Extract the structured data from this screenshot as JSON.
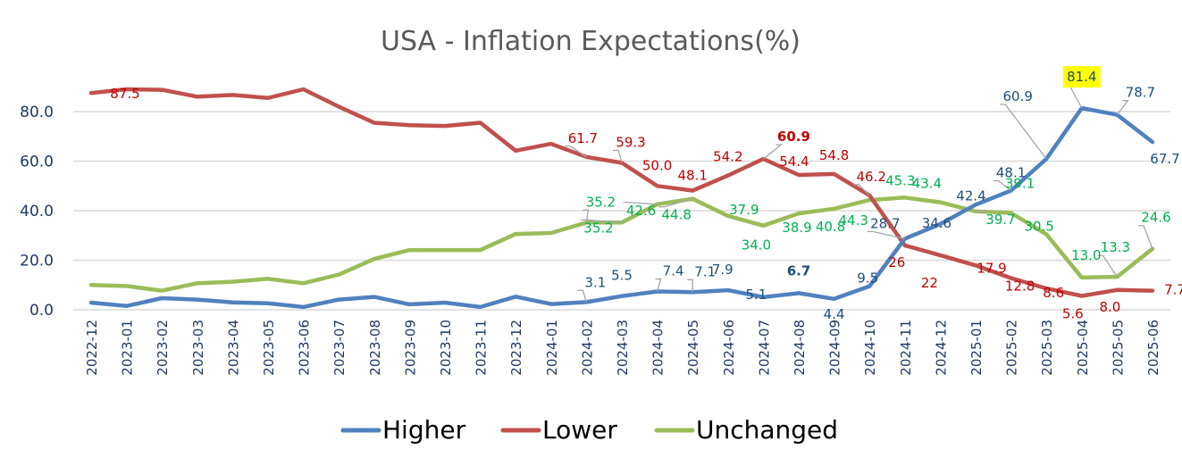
{
  "chart_data": {
    "type": "line",
    "title": "USA - Inflation Expectations(%)",
    "xlabel": "",
    "ylabel": "",
    "ylim": [
      0,
      90
    ],
    "yticks": [
      "0.0",
      "20.0",
      "40.0",
      "60.0",
      "80.0"
    ],
    "ytick_values": [
      0,
      20,
      40,
      60,
      80
    ],
    "grid": true,
    "legend_position": "bottom",
    "categories": [
      "2022-12",
      "2023-01",
      "2023-02",
      "2023-03",
      "2023-04",
      "2023-05",
      "2023-06",
      "2023-07",
      "2023-08",
      "2023-09",
      "2023-10",
      "2023-11",
      "2023-12",
      "2024-01",
      "2024-02",
      "2024-03",
      "2024-04",
      "2024-05",
      "2024-06",
      "2024-07",
      "2024-08",
      "2024-09",
      "2024-10",
      "2024-11",
      "2024-12",
      "2025-01",
      "2025-02",
      "2025-03",
      "2025-04",
      "2025-05",
      "2025-06"
    ],
    "series": [
      {
        "name": "Higher",
        "color": "#4f81bd",
        "label_color": "#1f4e79",
        "values": [
          2.9,
          1.5,
          4.7,
          4.1,
          3.0,
          2.6,
          1.1,
          4.1,
          5.2,
          2.2,
          2.9,
          1.1,
          5.3,
          2.3,
          3.1,
          5.5,
          7.4,
          7.1,
          7.9,
          5.1,
          6.7,
          4.4,
          9.5,
          28.7,
          34.6,
          42.4,
          48.1,
          60.9,
          81.4,
          78.7,
          67.7
        ],
        "labels": [
          {
            "i": 14,
            "text": "3.1"
          },
          {
            "i": 15,
            "text": "5.5"
          },
          {
            "i": 16,
            "text": "7.4"
          },
          {
            "i": 17,
            "text": "7.1"
          },
          {
            "i": 18,
            "text": "7.9"
          },
          {
            "i": 19,
            "text": "5.1"
          },
          {
            "i": 20,
            "text": "6.7",
            "bold": true
          },
          {
            "i": 21,
            "text": "4.4"
          },
          {
            "i": 22,
            "text": "9.5"
          },
          {
            "i": 23,
            "text": "28.7"
          },
          {
            "i": 24,
            "text": "34.6"
          },
          {
            "i": 25,
            "text": "42.4"
          },
          {
            "i": 26,
            "text": "48.1"
          },
          {
            "i": 27,
            "text": "60.9"
          },
          {
            "i": 28,
            "text": "81.4",
            "highlight": "#ffff00"
          },
          {
            "i": 29,
            "text": "78.7"
          },
          {
            "i": 30,
            "text": "67.7"
          }
        ]
      },
      {
        "name": "Lower",
        "color": "#c0504d",
        "label_color": "#c00000",
        "values": [
          87.5,
          89.0,
          88.8,
          86.0,
          86.7,
          85.5,
          89.0,
          82.0,
          75.5,
          74.5,
          74.2,
          75.5,
          64.2,
          67.0,
          61.7,
          59.3,
          50.0,
          48.1,
          54.2,
          60.9,
          54.4,
          54.8,
          46.2,
          26,
          22,
          17.9,
          12.8,
          8.6,
          5.6,
          8.0,
          7.7
        ],
        "labels": [
          {
            "i": 0,
            "text": "87.5"
          },
          {
            "i": 14,
            "text": "61.7"
          },
          {
            "i": 15,
            "text": "59.3"
          },
          {
            "i": 16,
            "text": "50.0"
          },
          {
            "i": 17,
            "text": "48.1"
          },
          {
            "i": 18,
            "text": "54.2"
          },
          {
            "i": 19,
            "text": "60.9",
            "bold": true
          },
          {
            "i": 20,
            "text": "54.4"
          },
          {
            "i": 21,
            "text": "54.8"
          },
          {
            "i": 22,
            "text": "46.2"
          },
          {
            "i": 23,
            "text": "26"
          },
          {
            "i": 24,
            "text": "22"
          },
          {
            "i": 25,
            "text": "17.9"
          },
          {
            "i": 26,
            "text": "12.8"
          },
          {
            "i": 27,
            "text": "8.6"
          },
          {
            "i": 28,
            "text": "5.6"
          },
          {
            "i": 29,
            "text": "8.0"
          },
          {
            "i": 30,
            "text": "7.7"
          }
        ]
      },
      {
        "name": "Unchanged",
        "color": "#9bbb59",
        "label_color": "#00b050",
        "values": [
          10.0,
          9.6,
          7.7,
          10.7,
          11.3,
          12.5,
          10.7,
          14.2,
          20.5,
          24.1,
          24.1,
          24.1,
          30.6,
          31.0,
          35.2,
          35.2,
          42.6,
          44.8,
          37.9,
          34.0,
          38.9,
          40.8,
          44.3,
          45.3,
          43.4,
          39.7,
          39.1,
          30.5,
          13.0,
          13.3,
          24.6
        ],
        "labels": [
          {
            "i": 14,
            "text": "35.2"
          },
          {
            "i": 15,
            "text": "35.2"
          },
          {
            "i": 16,
            "text": "42.6"
          },
          {
            "i": 17,
            "text": "44.8"
          },
          {
            "i": 18,
            "text": "37.9"
          },
          {
            "i": 19,
            "text": "34.0"
          },
          {
            "i": 20,
            "text": "38.9"
          },
          {
            "i": 21,
            "text": "40.8"
          },
          {
            "i": 22,
            "text": "44.3"
          },
          {
            "i": 23,
            "text": "45.3"
          },
          {
            "i": 24,
            "text": "43.4"
          },
          {
            "i": 25,
            "text": "39.7"
          },
          {
            "i": 26,
            "text": "39.1"
          },
          {
            "i": 27,
            "text": "30.5"
          },
          {
            "i": 28,
            "text": "13.0"
          },
          {
            "i": 29,
            "text": "13.3"
          },
          {
            "i": 30,
            "text": "24.6"
          }
        ]
      }
    ]
  }
}
